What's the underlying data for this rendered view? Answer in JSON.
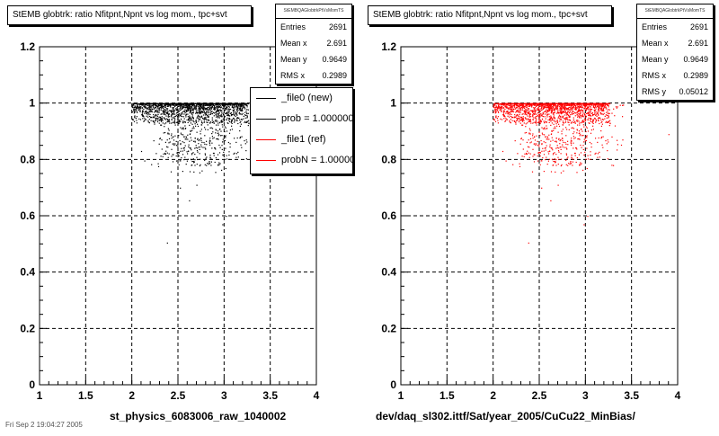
{
  "footer_text": "Fri Sep  2 19:04:27 2005",
  "chart_data": [
    {
      "type": "scatter",
      "title": "StEMB globtrk: ratio Nfitpnt,Npnt vs log mom., tpc+svt",
      "stats_header": "StEMBQAGlobtrkPtVsMomTS",
      "stats": [
        {
          "label": "Entries",
          "value": "2691"
        },
        {
          "label": "Mean x",
          "value": "2.691"
        },
        {
          "label": "Mean y",
          "value": "0.9649"
        },
        {
          "label": "RMS x",
          "value": "0.2989"
        }
      ],
      "legend": [
        {
          "label": "_file0 (new)",
          "color": "#000000"
        },
        {
          "label": "prob = 1.000000",
          "color": "#000000"
        },
        {
          "label": "_file1 (ref)",
          "color": "#ff0000"
        },
        {
          "label": "probN = 1.000000",
          "color": "#ff0000"
        }
      ],
      "xlabel": "st_physics_6083006_raw_1040002",
      "xlim": [
        1,
        4
      ],
      "ylim": [
        0,
        1.2
      ],
      "x_ticks": [
        "1",
        "1.5",
        "2",
        "2.5",
        "3",
        "3.5",
        "4"
      ],
      "y_ticks": [
        "0",
        "0.2",
        "0.4",
        "0.6",
        "0.8",
        "1",
        "1.2"
      ],
      "grid": true,
      "marker_color": "#000000",
      "series": [
        {
          "values_summary": "dense band at y≈0.95–1.0 for x 2.0–3.2, sparse tail down to y≈0.5"
        }
      ],
      "outliers": [
        [
          2.38,
          0.505
        ],
        [
          2.62,
          0.655
        ],
        [
          2.52,
          0.7
        ],
        [
          2.98,
          0.57
        ],
        [
          3.02,
          0.6
        ],
        [
          2.1,
          0.83
        ],
        [
          2.7,
          0.71
        ]
      ]
    },
    {
      "type": "scatter",
      "title": "StEMB globtrk: ratio Nfitpnt,Npnt vs log mom., tpc+svt",
      "stats_header": "StEMBQAGlobtrkPtVsMomTS",
      "stats": [
        {
          "label": "Entries",
          "value": "2691"
        },
        {
          "label": "Mean x",
          "value": "2.691"
        },
        {
          "label": "Mean y",
          "value": "0.9649"
        },
        {
          "label": "RMS x",
          "value": "0.2989"
        },
        {
          "label": "RMS y",
          "value": "0.05012"
        }
      ],
      "xlabel": "dev/daq_sl302.ittf/Sat/year_2005/CuCu22_MinBias/",
      "xlim": [
        1,
        4
      ],
      "ylim": [
        0,
        1.2
      ],
      "x_ticks": [
        "1",
        "1.5",
        "2",
        "2.5",
        "3",
        "3.5",
        "4"
      ],
      "y_ticks": [
        "0",
        "0.2",
        "0.4",
        "0.6",
        "0.8",
        "1",
        "1.2"
      ],
      "grid": true,
      "marker_color": "#ff0000",
      "outliers": [
        [
          2.38,
          0.505
        ],
        [
          2.62,
          0.655
        ],
        [
          2.52,
          0.7
        ],
        [
          2.98,
          0.57
        ],
        [
          3.02,
          0.6
        ],
        [
          2.1,
          0.83
        ],
        [
          3.9,
          0.89
        ],
        [
          2.7,
          0.71
        ]
      ]
    }
  ]
}
